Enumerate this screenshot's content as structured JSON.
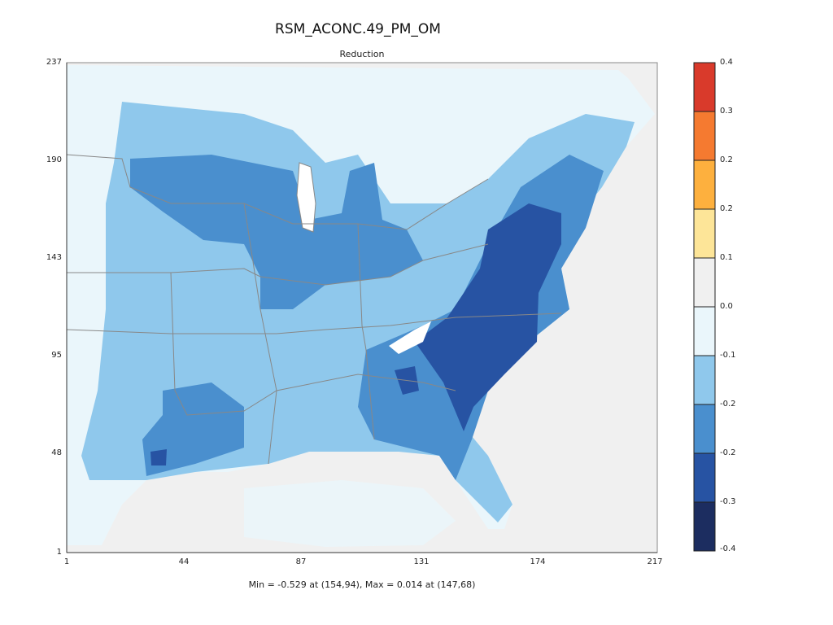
{
  "chart_data": {
    "type": "heatmap",
    "title": "RSM_ACONC.49_PM_OM",
    "subtitle": "Reduction",
    "x_ticks": [
      "1",
      "44",
      "87",
      "131",
      "174",
      "217"
    ],
    "y_ticks": [
      "237",
      "190",
      "143",
      "95",
      "48",
      "1"
    ],
    "xlim": [
      1,
      217
    ],
    "ylim": [
      1,
      237
    ],
    "colorbar": {
      "ticks": [
        "0.4",
        "0.3",
        "0.2",
        "0.2",
        "0.1",
        "0.0",
        "-0.1",
        "-0.2",
        "-0.2",
        "-0.3",
        "-0.4"
      ],
      "colors": [
        "#d93a2b",
        "#f57a30",
        "#fdb03e",
        "#fde598",
        "#f0f0f0",
        "#eaf6fb",
        "#8fc8ec",
        "#4a8fce",
        "#2753a3",
        "#1c2d60"
      ]
    },
    "summary": "Min = -0.529 at (154,94), Max = 0.014 at (147,68)"
  },
  "colors": {
    "ocean": "#f0f0f0",
    "land_light": "#eaf6fb",
    "light": "#8fc8ec",
    "medium": "#4a8fce",
    "dark": "#2753a3",
    "darkest": "#1c2d60",
    "borders": "#888888"
  }
}
